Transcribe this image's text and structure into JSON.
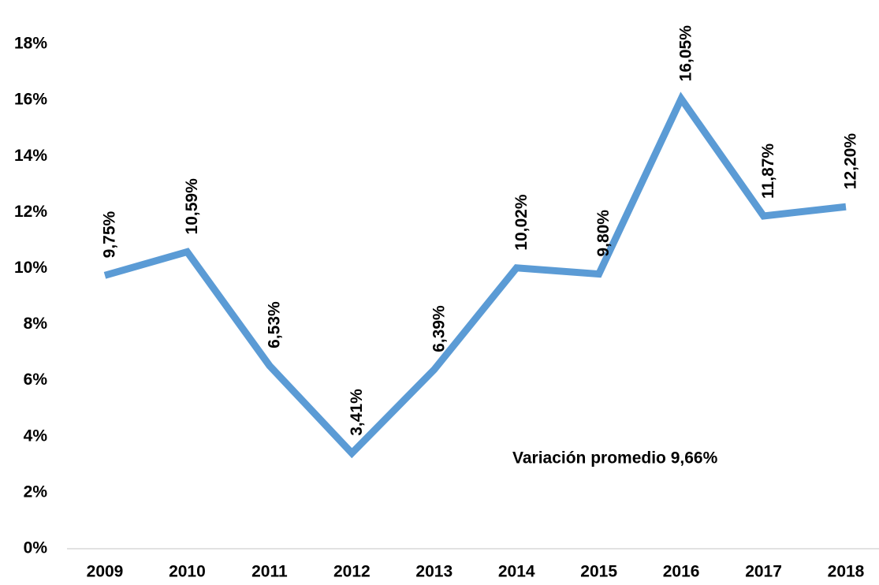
{
  "chart_data": {
    "type": "line",
    "categories": [
      "2009",
      "2010",
      "2011",
      "2012",
      "2013",
      "2014",
      "2015",
      "2016",
      "2017",
      "2018"
    ],
    "series": [
      {
        "color": "#5b9bd5",
        "values": [
          9.75,
          10.59,
          6.53,
          3.41,
          6.39,
          10.02,
          9.8,
          16.05,
          11.87,
          12.2
        ],
        "value_labels": [
          "9,75%",
          "10,59%",
          "6,53%",
          "3,41%",
          "6,39%",
          "10,02%",
          "9,80%",
          "16,05%",
          "11,87%",
          "12,20%"
        ]
      }
    ],
    "ylim": [
      0,
      18
    ],
    "yticks": [
      {
        "value": 0,
        "label": "0%"
      },
      {
        "value": 2,
        "label": "2%"
      },
      {
        "value": 4,
        "label": "4%"
      },
      {
        "value": 6,
        "label": "6%"
      },
      {
        "value": 8,
        "label": "8%"
      },
      {
        "value": 10,
        "label": "10%"
      },
      {
        "value": 12,
        "label": "12%"
      },
      {
        "value": 14,
        "label": "14%"
      },
      {
        "value": 16,
        "label": "16%"
      },
      {
        "value": 18,
        "label": "18%"
      }
    ],
    "grid": false,
    "annotations": [
      "Variación promedio 9,66%"
    ]
  }
}
